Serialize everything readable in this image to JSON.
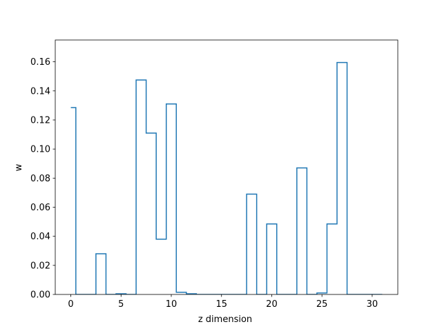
{
  "chart_data": {
    "type": "line",
    "drawstyle": "steps",
    "title": "",
    "xlabel": "z dimension",
    "ylabel": "w",
    "xlim": [
      -1.55,
      32.55
    ],
    "ylim": [
      0,
      0.175
    ],
    "xticks": [
      0,
      5,
      10,
      15,
      20,
      25,
      30
    ],
    "yticks": [
      0.0,
      0.02,
      0.04,
      0.06,
      0.08,
      0.1,
      0.12,
      0.14,
      0.16
    ],
    "ytick_labels": [
      "0.00",
      "0.02",
      "0.04",
      "0.06",
      "0.08",
      "0.10",
      "0.12",
      "0.14",
      "0.16"
    ],
    "grid": false,
    "legend": false,
    "color": "#1f77b4",
    "x": [
      0,
      1,
      2,
      3,
      4,
      5,
      6,
      7,
      8,
      9,
      10,
      11,
      12,
      13,
      14,
      15,
      16,
      17,
      18,
      19,
      20,
      21,
      22,
      23,
      24,
      25,
      26,
      27,
      28,
      29,
      30,
      31
    ],
    "values": [
      0.1285,
      0.0,
      0.0,
      0.028,
      0.0,
      0.0005,
      0.0,
      0.1475,
      0.111,
      0.038,
      0.131,
      0.0015,
      0.0005,
      0.0,
      0.0,
      0.0,
      0.0,
      0.0,
      0.069,
      0.0,
      0.0485,
      0.0,
      0.0,
      0.087,
      0.0,
      0.001,
      0.0485,
      0.1595,
      0.0,
      0.0,
      0.0,
      0.0
    ]
  }
}
